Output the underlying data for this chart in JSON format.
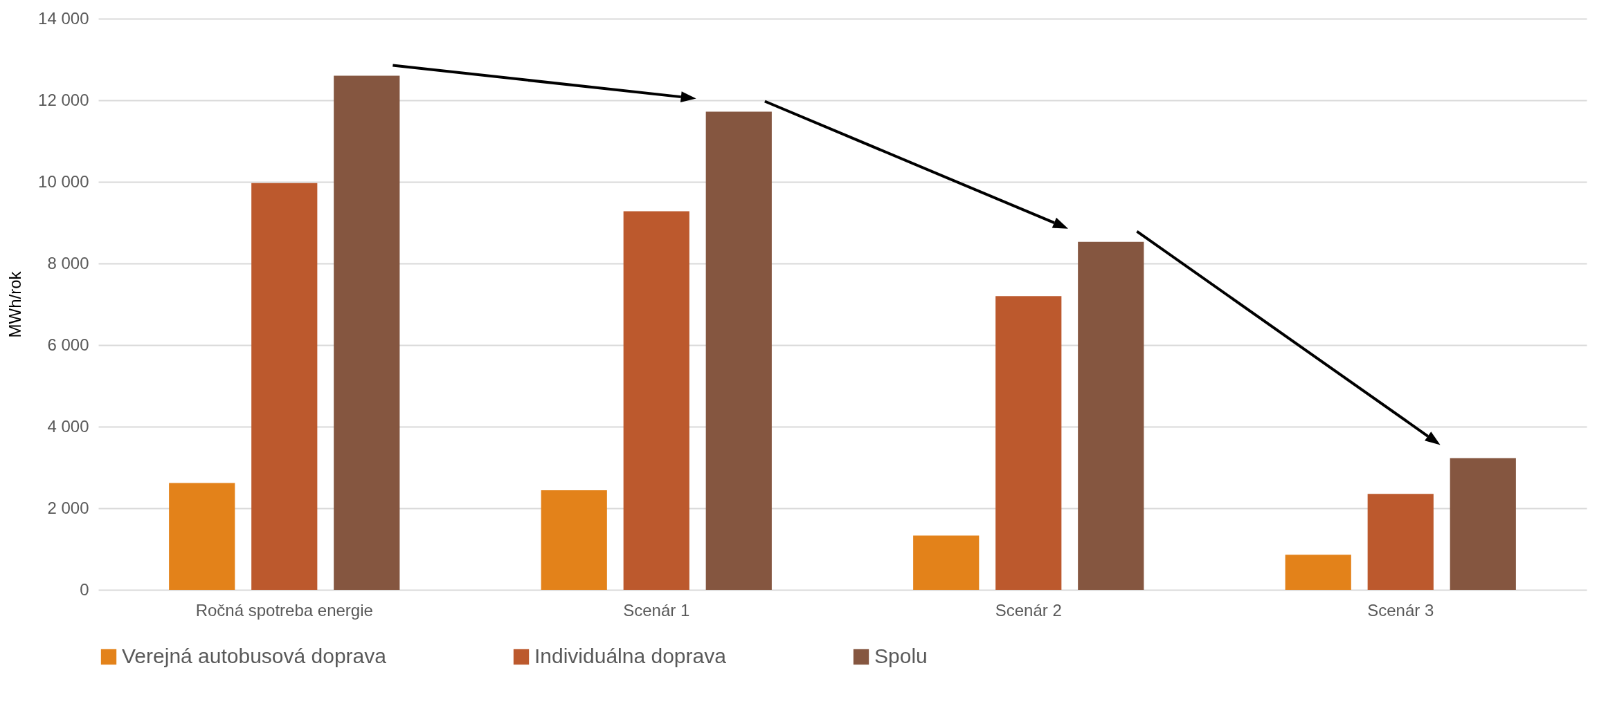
{
  "chart_data": {
    "type": "bar",
    "ylabel": "MWh/rok",
    "categories": [
      "Ročná spotreba energie",
      "Scenár 1",
      "Scenár 2",
      "Scenár 3"
    ],
    "series": [
      {
        "name": "Verejná autobusová doprava",
        "color": "#e3821a",
        "values": [
          2620,
          2440,
          1330,
          860
        ]
      },
      {
        "name": "Individuálna doprava",
        "color": "#bc592d",
        "values": [
          9970,
          9280,
          7200,
          2350
        ]
      },
      {
        "name": "Spolu",
        "color": "#855640",
        "values": [
          12600,
          11720,
          8530,
          3230
        ]
      }
    ],
    "ylim": [
      0,
      14000
    ],
    "yticks": [
      0,
      {
        "value": 2000,
        "label": "2 000"
      },
      {
        "value": 4000,
        "label": "4 000"
      },
      {
        "value": 6000,
        "label": "6 000"
      },
      {
        "value": 8000,
        "label": "8 000"
      },
      {
        "value": 10000,
        "label": "10 000"
      },
      {
        "value": 12000,
        "label": "12 000"
      },
      {
        "value": 14000,
        "label": "14 000"
      }
    ],
    "grid": "y",
    "legend": "bottom"
  }
}
